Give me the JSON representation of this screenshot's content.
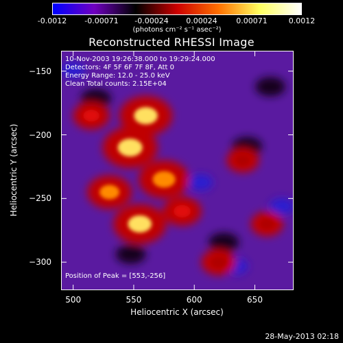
{
  "colorbar": {
    "ticks": [
      "-0.0012",
      "-0.00071",
      "-0.00024",
      "0.00024",
      "0.00071",
      "0.0012"
    ],
    "units": "(photons cm⁻² s⁻¹ asec⁻²)"
  },
  "title": "Reconstructed RHESSI Image",
  "annotations": {
    "line1": "10-Nov-2003 19:26:38.000 to 19:29:24.000",
    "line2": "Detectors: 4F 5F 6F 7F 8F, Att 0",
    "line3": "Energy Range: 12.0 - 25.0 keV",
    "line4": "Clean     Total counts: 2.15E+04",
    "peak": "Position of Peak = [553,-256]"
  },
  "chart_data": {
    "type": "heatmap",
    "xlabel": "Heliocentric X (arcsec)",
    "ylabel": "Heliocentric Y (arcsec)",
    "xlim": [
      490,
      682
    ],
    "ylim": [
      -322,
      -134
    ],
    "xticks": [
      500,
      550,
      600,
      650
    ],
    "yticks": [
      -150,
      -200,
      -250,
      -300
    ],
    "xtick_labels": [
      "500",
      "550",
      "600",
      "650"
    ],
    "ytick_labels": [
      "-150",
      "-200",
      "-250",
      "-300"
    ],
    "peak_position": [
      553,
      -256
    ],
    "bright_regions": [
      {
        "x": 547,
        "y": -210,
        "level": 1.0
      },
      {
        "x": 560,
        "y": -185,
        "level": 0.95
      },
      {
        "x": 575,
        "y": -235,
        "level": 0.9
      },
      {
        "x": 555,
        "y": -270,
        "level": 0.95
      },
      {
        "x": 530,
        "y": -245,
        "level": 0.75
      },
      {
        "x": 590,
        "y": -260,
        "level": 0.6
      },
      {
        "x": 515,
        "y": -185,
        "level": 0.55
      },
      {
        "x": 620,
        "y": -300,
        "level": 0.5
      },
      {
        "x": 640,
        "y": -220,
        "level": 0.45
      },
      {
        "x": 660,
        "y": -270,
        "level": 0.45
      }
    ],
    "colormap": [
      "#0000ff",
      "#7000c0",
      "#000000",
      "#cc0000",
      "#ff7000",
      "#ffff60",
      "#ffffff"
    ]
  },
  "footer": "28-May-2013 02:18"
}
